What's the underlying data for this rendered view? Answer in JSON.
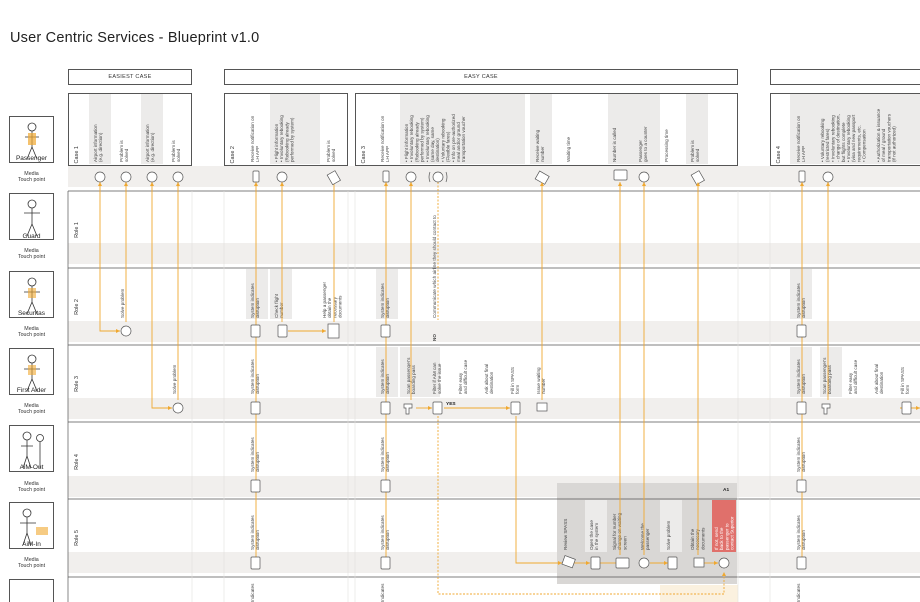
{
  "title": "User Centric Services - Blueprint v1.0",
  "case_headers": [
    "EASIEST CASE",
    "EASY CASE"
  ],
  "personas": [
    "Passenger",
    "Guard",
    "Securitas",
    "First Aider",
    "AiM-Out",
    "AiM-In"
  ],
  "media_touch_point": "Media\nTouch point",
  "roles": [
    "Role 1",
    "Role 2",
    "Role 3",
    "Role 4",
    "Role 5"
  ],
  "cases": [
    "Case 1",
    "Case 2",
    "Case 3",
    "Case 4"
  ],
  "case1_steps": [
    "Airport information\n(e.g. direction)",
    "Problem is\nsolved",
    "Airport information\n(e.g. direction)",
    "Problem is\nsolved"
  ],
  "case2_steps": [
    "Receive notification on\nLH APP",
    "• Flight information\n• Involuntary rebooking\n(Rebooking already\nperformed by system)",
    "Problem is\nsolved"
  ],
  "case3_steps": [
    "Receive notification on\nLH APP",
    "• Flight information\n• Involuntary rebooking\n(Rebooking already\nperformed by system)\n• Involuntary rebooking\n(same day, same\ndestination)\n• Voluntary rebooking\n(Flexible fares)\n• Info on pre-authorized\nmeal and/or ground\ntransportation voucher",
    "Receive waiting\nnumber",
    "Waiting time",
    "Number is called",
    "Passenger\ngoes to a counter",
    "Processing time",
    "Problem is\nsolved"
  ],
  "case4_steps": [
    "Receive notification on\nLH APP",
    "• Voluntary rebooking\n(restricted fares)\n• Involuntary rebooking\n- change of destination,\nbut flights complete\n• Involuntary rebooking\n(visa and new passport\nrequirements, etc.\n• Compensation",
    "• Authorization & issuance\nof meal / ground\ntransportation vouchers\n(if not authorized)"
  ],
  "role2_texts": [
    "Solve problem",
    "System indicates\ndisruption",
    "Check flight\nnumber",
    "Help a passenger\nobtain the\nnecessary\ndocuments",
    "System indicates\ndisruption",
    "System indicates\ndisruption"
  ],
  "communicate_note": "Communicate which airline they should contact to",
  "no_label": "NO",
  "yes_label": "YES",
  "role3_texts": [
    "Solve problem",
    "System indicates\ndisruption",
    "System indicates\ndisruption",
    "Scan passenger's\nboarding pass",
    "Filter if AiM can\nsolve the issue",
    "Filter easy\nand difficult case",
    "Ask about final\ndestination",
    "Fill in SPASS\nform",
    "Issue waiting\nnumber",
    "System indicates\ndisruption",
    "Scan passenger's\nboarding pass",
    "Filter easy\nand difficult case",
    "Ask about final\ndestination",
    "Fill in SPASS\nform"
  ],
  "role4_texts": [
    "System indicates\ndisruption",
    "System indicates\ndisruption",
    "System indicates\ndisruption"
  ],
  "a1_label": "A1",
  "role5_texts": [
    "System indicates\ndisruption",
    "System indicates\ndisruption",
    "Review SPASS",
    "Open the case\nin the system",
    "Signal for number\nchange on waiting\nscreen",
    "Welcome the\npassenger",
    "Solve problem",
    "Obtain the\nnecessary\ndocuments",
    "If not, send\nback to the\npassenger to\ncontact Superior",
    "System indicates\ndisruption"
  ],
  "role6_texts": [
    "Indicates",
    "Indicates",
    "Indicates"
  ],
  "colors": {
    "accent": "#f0a830",
    "band": "#f1efed",
    "column": "#ecebea",
    "a1": "#d8d6d4",
    "red": "#e0706b",
    "line": "#555555"
  }
}
